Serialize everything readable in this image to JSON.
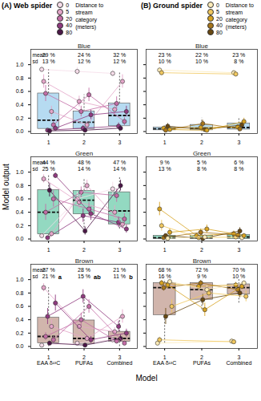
{
  "figure": {
    "ylabel": "Model output",
    "xlabel": "Model",
    "columns": [
      {
        "title": "(A) Web spider",
        "legend_title": "Distance to stream category (meters)",
        "legend_categories": [
          "0",
          "5",
          "20",
          "40",
          "80"
        ],
        "legend_colors": [
          "#f5dce9",
          "#e4a6c9",
          "#c46ea7",
          "#8f3a7f",
          "#4b1747"
        ]
      },
      {
        "title": "(B) Ground spider",
        "legend_title": "Distance to stream category (meters)",
        "legend_categories": [
          "0",
          "5",
          "20",
          "40",
          "80"
        ],
        "legend_colors": [
          "#fcebb8",
          "#f1c85f",
          "#d8a322",
          "#a8761b",
          "#6a4912"
        ]
      }
    ]
  },
  "chart_data": [
    {
      "type": "box",
      "title": "Blue",
      "color": "#a9d5ee",
      "x": [
        1,
        2,
        3
      ],
      "xlim": [
        0.5,
        3.5
      ],
      "xticks": [
        1,
        2,
        3
      ],
      "ylim": [
        -0.03,
        1.23
      ],
      "yticks": [
        {
          "value": 0,
          "label": "0.0"
        },
        0.2,
        0.4,
        0.6,
        0.8,
        {
          "value": 1,
          "label": "1.0"
        }
      ],
      "mean_label": "mean",
      "sd_label": "sd",
      "mean_labels": [
        "29 %",
        "24 %",
        "32 %"
      ],
      "sd_labels": [
        "13 %",
        "12 %",
        "12 %"
      ],
      "boxes": [
        {
          "lo": 0.0,
          "q1": 0.04,
          "median": 0.17,
          "q3": 0.57,
          "hi": 0.93
        },
        {
          "lo": 0.0,
          "q1": 0.04,
          "median": 0.14,
          "q3": 0.3,
          "hi": 0.55
        },
        {
          "lo": 0.0,
          "q1": 0.08,
          "median": 0.24,
          "q3": 0.42,
          "hi": 0.9
        }
      ],
      "individuals": [
        {
          "distance": "0",
          "values": [
            0.93,
            0.9,
            0.87
          ],
          "errors": [
            0.05,
            0.06,
            0.05
          ]
        },
        {
          "distance": "5",
          "values": [
            0.75,
            0.45,
            0.33
          ],
          "errors": [
            0.1,
            0.08,
            0.08
          ]
        },
        {
          "distance": "20",
          "values": [
            0.57,
            0.3,
            0.42
          ],
          "errors": [
            0.12,
            0.08,
            0.1
          ]
        },
        {
          "distance": "40",
          "values": [
            0.02,
            0.05,
            0.08
          ],
          "errors": [
            0.02,
            0.04,
            0.05
          ]
        },
        {
          "distance": "80",
          "values": [
            0.01,
            0.02,
            0.05
          ],
          "errors": [
            0.01,
            0.02,
            0.03
          ]
        },
        {
          "distance": "5",
          "values": [
            0.3,
            0.1,
            0.75
          ],
          "errors": [
            0.08,
            0.05,
            0.1
          ]
        },
        {
          "distance": "20",
          "values": [
            0.1,
            0.55,
            0.15
          ],
          "errors": [
            0.05,
            0.1,
            0.06
          ]
        },
        {
          "distance": "40",
          "values": [
            0.05,
            0.25,
            0.3
          ],
          "errors": [
            0.04,
            0.07,
            0.08
          ]
        }
      ]
    },
    {
      "type": "box",
      "title": "Blue",
      "color": "#a9d5ee",
      "x": [
        1,
        2,
        3
      ],
      "xlim": [
        0.5,
        3.5
      ],
      "xticks": [
        1,
        2,
        3
      ],
      "ylim": [
        -0.03,
        1.23
      ],
      "yticks": [
        {
          "value": 0,
          "label": "0.0"
        },
        0.2,
        0.4,
        0.6,
        0.8,
        {
          "value": 1,
          "label": "1.0"
        }
      ],
      "tick_labels": "x",
      "mean_labels": [
        "23 %",
        "22 %",
        "23 %"
      ],
      "sd_labels": [
        "10 %",
        "10 %",
        "8 %"
      ],
      "boxes": [
        {
          "lo": 0.0,
          "q1": 0.02,
          "median": 0.04,
          "q3": 0.06,
          "hi": 0.1
        },
        {
          "lo": 0.0,
          "q1": 0.02,
          "median": 0.05,
          "q3": 0.1,
          "hi": 0.2
        },
        {
          "lo": 0.0,
          "q1": 0.03,
          "median": 0.06,
          "q3": 0.12,
          "hi": 0.2
        }
      ],
      "individuals": [
        {
          "distance": "0",
          "values": [
            0.92,
            null,
            0.88
          ],
          "errors": [
            0.04,
            null,
            0.04
          ]
        },
        {
          "distance": "5",
          "values": [
            0.88,
            null,
            0.86
          ],
          "errors": [
            0.04,
            null,
            0.04
          ]
        },
        {
          "distance": "20",
          "values": [
            0.05,
            0.06,
            0.07
          ],
          "errors": [
            0.03,
            0.03,
            0.03
          ]
        },
        {
          "distance": "40",
          "values": [
            0.02,
            0.12,
            0.04
          ],
          "errors": [
            0.02,
            0.05,
            0.02
          ]
        },
        {
          "distance": "80",
          "values": [
            0.08,
            0.03,
            0.1
          ],
          "errors": [
            0.04,
            0.02,
            0.04
          ]
        },
        {
          "distance": "20",
          "values": [
            0.03,
            0.02,
            0.15
          ],
          "errors": [
            0.02,
            0.02,
            0.05
          ]
        }
      ]
    },
    {
      "type": "box",
      "title": "Green",
      "color": "#80d2b6",
      "x": [
        1,
        2,
        3
      ],
      "xlim": [
        0.5,
        3.5
      ],
      "xticks": [
        1,
        2,
        3
      ],
      "ylim": [
        -0.03,
        1.23
      ],
      "yticks": [
        {
          "value": 0,
          "label": "0.0"
        },
        0.2,
        0.4,
        0.6,
        0.8,
        {
          "value": 1,
          "label": "1.0"
        }
      ],
      "mean_label": "mean",
      "sd_label": "sd",
      "mean_labels": [
        "44 %",
        "48 %",
        "47 %"
      ],
      "sd_labels": [
        "25 %",
        "14 %",
        "14 %"
      ],
      "boxes": [
        {
          "lo": 0.0,
          "q1": 0.07,
          "median": 0.4,
          "q3": 0.73,
          "hi": 0.95
        },
        {
          "lo": 0.12,
          "q1": 0.37,
          "median": 0.58,
          "q3": 0.72,
          "hi": 0.9
        },
        {
          "lo": 0.15,
          "q1": 0.22,
          "median": 0.42,
          "q3": 0.7,
          "hi": 0.92
        }
      ],
      "individuals": [
        {
          "distance": "0",
          "values": [
            0.05,
            0.6,
            0.75
          ],
          "errors": [
            0.04,
            0.1,
            0.1
          ]
        },
        {
          "distance": "5",
          "values": [
            0.9,
            0.55,
            0.4
          ],
          "errors": [
            0.06,
            0.1,
            0.1
          ]
        },
        {
          "distance": "20",
          "values": [
            0.4,
            0.7,
            0.65
          ],
          "errors": [
            0.12,
            0.08,
            0.1
          ]
        },
        {
          "distance": "40",
          "values": [
            0.02,
            0.35,
            0.25
          ],
          "errors": [
            0.02,
            0.1,
            0.08
          ]
        },
        {
          "distance": "80",
          "values": [
            0.73,
            0.12,
            0.8
          ],
          "errors": [
            0.1,
            0.06,
            0.08
          ]
        },
        {
          "distance": "5",
          "values": [
            0.08,
            0.8,
            0.22
          ],
          "errors": [
            0.05,
            0.08,
            0.07
          ]
        },
        {
          "distance": "20",
          "values": [
            0.6,
            0.45,
            0.3
          ],
          "errors": [
            0.12,
            0.1,
            0.08
          ]
        },
        {
          "distance": "40",
          "values": [
            0.95,
            0.38,
            0.15
          ],
          "errors": [
            0.04,
            0.1,
            0.06
          ]
        }
      ]
    },
    {
      "type": "box",
      "title": "Green",
      "color": "#80d2b6",
      "x": [
        1,
        2,
        3
      ],
      "xlim": [
        0.5,
        3.5
      ],
      "xticks": [
        1,
        2,
        3
      ],
      "ylim": [
        -0.03,
        1.23
      ],
      "yticks": [
        {
          "value": 0,
          "label": "0.0"
        },
        0.2,
        0.4,
        0.6,
        0.8,
        {
          "value": 1,
          "label": "1.0"
        }
      ],
      "tick_labels": "x",
      "mean_labels": [
        "9 %",
        "5 %",
        "6 %"
      ],
      "sd_labels": [
        "13 %",
        "8 %",
        "8 %"
      ],
      "boxes": [
        {
          "lo": 0.0,
          "q1": 0.0,
          "median": 0.02,
          "q3": 0.05,
          "hi": 0.1
        },
        {
          "lo": 0.0,
          "q1": 0.0,
          "median": 0.02,
          "q3": 0.05,
          "hi": 0.12
        },
        {
          "lo": 0.0,
          "q1": 0.0,
          "median": 0.03,
          "q3": 0.06,
          "hi": 0.12
        }
      ],
      "individuals": [
        {
          "distance": "20",
          "values": [
            0.45,
            0.05,
            0.08
          ],
          "errors": [
            0.1,
            0.03,
            0.04
          ]
        },
        {
          "distance": "5",
          "values": [
            0.2,
            0.02,
            0.03
          ],
          "errors": [
            0.08,
            0.02,
            0.02
          ]
        },
        {
          "distance": "40",
          "values": [
            0.02,
            0.1,
            0.06
          ],
          "errors": [
            0.02,
            0.05,
            0.03
          ]
        },
        {
          "distance": "80",
          "values": [
            0.05,
            0.01,
            0.12
          ],
          "errors": [
            0.03,
            0.01,
            0.05
          ]
        },
        {
          "distance": "0",
          "values": [
            0.01,
            0.03,
            0.02
          ],
          "errors": [
            0.01,
            0.02,
            0.02
          ]
        },
        {
          "distance": "20",
          "values": [
            0.1,
            0.15,
            0.05
          ],
          "errors": [
            0.05,
            0.06,
            0.03
          ]
        }
      ]
    },
    {
      "type": "box",
      "title": "Brown",
      "color": "#c9a89d",
      "x": [
        1,
        2,
        3
      ],
      "xlim": [
        0.5,
        3.5
      ],
      "xticks": [
        1,
        2,
        3
      ],
      "xtick_names": [
        "EAA δ¹³C",
        "PUFAs",
        "Combined"
      ],
      "ylim": [
        -0.03,
        1.23
      ],
      "yticks": [
        {
          "value": 0,
          "label": "0.0"
        },
        0.2,
        0.4,
        0.6,
        0.8,
        {
          "value": 1,
          "label": "1.0"
        }
      ],
      "mean_label": "mean",
      "sd_label": "sd",
      "mean_labels": [
        "27 %",
        "28 %",
        "21 %"
      ],
      "sd_labels": [
        "21 %",
        "15 %",
        "11 %"
      ],
      "letters": [
        "a",
        "ab",
        "b"
      ],
      "boxes": [
        {
          "lo": 0.0,
          "q1": 0.05,
          "median": 0.15,
          "q3": 0.43,
          "hi": 0.88
        },
        {
          "lo": 0.0,
          "q1": 0.04,
          "median": 0.12,
          "q3": 0.39,
          "hi": 0.75
        },
        {
          "lo": 0.0,
          "q1": 0.07,
          "median": 0.12,
          "q3": 0.22,
          "hi": 0.45
        }
      ],
      "individuals": [
        {
          "distance": "0",
          "values": [
            0.02,
            0.05,
            0.1
          ],
          "errors": [
            0.02,
            0.03,
            0.05
          ]
        },
        {
          "distance": "5",
          "values": [
            0.88,
            0.3,
            0.22
          ],
          "errors": [
            0.06,
            0.08,
            0.06
          ]
        },
        {
          "distance": "20",
          "values": [
            0.15,
            0.4,
            0.08
          ],
          "errors": [
            0.06,
            0.1,
            0.04
          ]
        },
        {
          "distance": "40",
          "values": [
            0.45,
            0.75,
            0.3
          ],
          "errors": [
            0.12,
            0.1,
            0.08
          ]
        },
        {
          "distance": "80",
          "values": [
            0.05,
            0.02,
            0.12
          ],
          "errors": [
            0.03,
            0.02,
            0.05
          ]
        },
        {
          "distance": "5",
          "values": [
            0.3,
            0.12,
            0.45
          ],
          "errors": [
            0.1,
            0.05,
            0.1
          ]
        },
        {
          "distance": "20",
          "values": [
            0.1,
            0.6,
            0.05
          ],
          "errors": [
            0.05,
            0.1,
            0.03
          ]
        },
        {
          "distance": "40",
          "values": [
            0.65,
            0.1,
            0.2
          ],
          "errors": [
            0.12,
            0.05,
            0.06
          ]
        }
      ]
    },
    {
      "type": "box",
      "title": "Brown",
      "color": "#c9a89d",
      "x": [
        1,
        2,
        3
      ],
      "xlim": [
        0.5,
        3.5
      ],
      "xticks": [
        1,
        2,
        3
      ],
      "xtick_names": [
        "EAA δ¹³C",
        "PUFAs",
        "Combined"
      ],
      "ylim": [
        -0.03,
        1.23
      ],
      "yticks": [
        {
          "value": 0,
          "label": "0.0"
        },
        0.2,
        0.4,
        0.6,
        0.8,
        {
          "value": 1,
          "label": "1.0"
        }
      ],
      "tick_labels": "x",
      "mean_labels": [
        "68 %",
        "72 %",
        "70 %"
      ],
      "sd_labels": [
        "16 %",
        "9 %",
        "10 %"
      ],
      "boxes": [
        {
          "lo": 0.05,
          "q1": 0.47,
          "median": 0.88,
          "q3": 0.95,
          "hi": 1.0
        },
        {
          "lo": 0.55,
          "q1": 0.7,
          "median": 0.85,
          "q3": 0.95,
          "hi": 1.0
        },
        {
          "lo": 0.65,
          "q1": 0.78,
          "median": 0.88,
          "q3": 0.93,
          "hi": 1.0
        }
      ],
      "individuals": [
        {
          "distance": "0",
          "values": [
            0.05,
            null,
            0.08
          ],
          "errors": [
            0.03,
            null,
            0.04
          ]
        },
        {
          "distance": "5",
          "values": [
            0.1,
            null,
            0.07
          ],
          "errors": [
            0.04,
            null,
            0.03
          ]
        },
        {
          "distance": "20",
          "values": [
            0.95,
            0.9,
            0.92
          ],
          "errors": [
            0.04,
            0.05,
            0.04
          ]
        },
        {
          "distance": "40",
          "values": [
            0.88,
            0.95,
            0.85
          ],
          "errors": [
            0.05,
            0.04,
            0.05
          ]
        },
        {
          "distance": "80",
          "values": [
            0.45,
            0.7,
            0.8
          ],
          "errors": [
            0.12,
            0.08,
            0.07
          ]
        },
        {
          "distance": "20",
          "values": [
            0.92,
            0.55,
            0.9
          ],
          "errors": [
            0.05,
            0.1,
            0.05
          ]
        },
        {
          "distance": "0",
          "values": [
            0.97,
            0.85,
            0.95
          ],
          "errors": [
            0.03,
            0.06,
            0.04
          ]
        },
        {
          "distance": "5",
          "values": [
            0.6,
            0.8,
            0.75
          ],
          "errors": [
            0.1,
            0.07,
            0.08
          ]
        }
      ]
    }
  ]
}
